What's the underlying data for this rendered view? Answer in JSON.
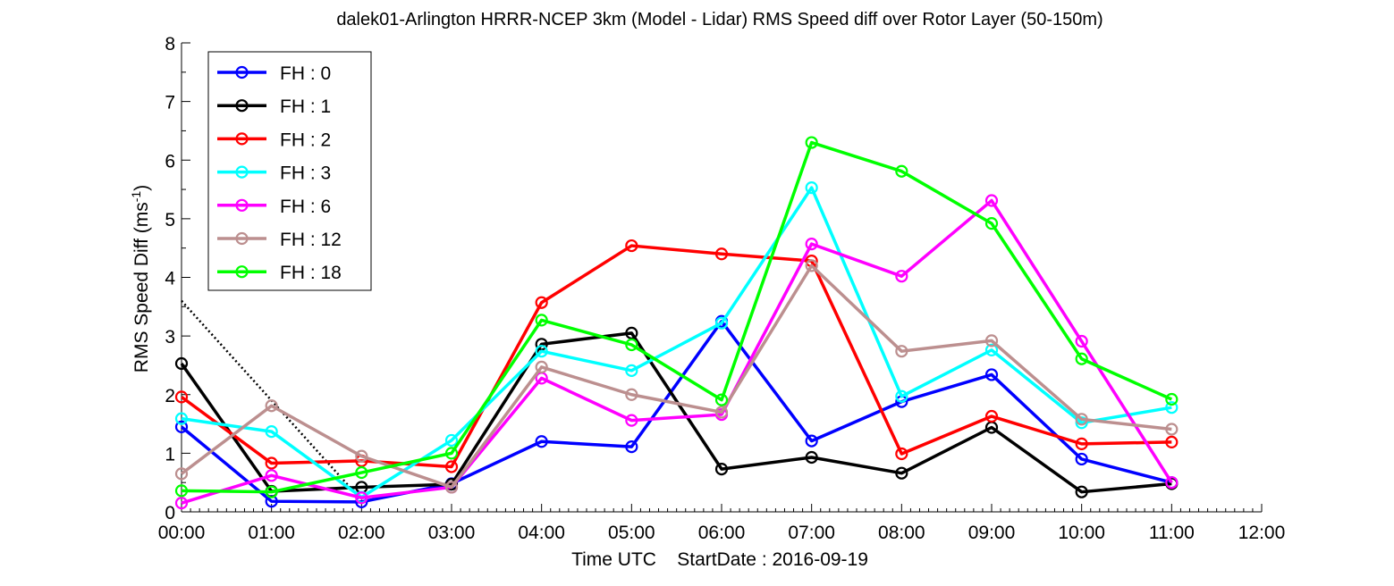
{
  "chart_data": {
    "type": "line",
    "title": "dalek01-Arlington HRRR-NCEP 3km (Model - Lidar) RMS Speed diff over Rotor Layer (50-150m)",
    "xlabel": "Time UTC    StartDate : 2016-09-19",
    "ylabel_main": "RMS Speed Diff (ms",
    "ylabel_sup": "-1",
    "ylabel_close": ")",
    "xlim": [
      0,
      12
    ],
    "ylim": [
      0,
      8
    ],
    "x_ticks": [
      {
        "v": 0,
        "label": "00:00"
      },
      {
        "v": 1,
        "label": "01:00"
      },
      {
        "v": 2,
        "label": "02:00"
      },
      {
        "v": 3,
        "label": "03:00"
      },
      {
        "v": 4,
        "label": "04:00"
      },
      {
        "v": 5,
        "label": "05:00"
      },
      {
        "v": 6,
        "label": "06:00"
      },
      {
        "v": 7,
        "label": "07:00"
      },
      {
        "v": 8,
        "label": "08:00"
      },
      {
        "v": 9,
        "label": "09:00"
      },
      {
        "v": 10,
        "label": "10:00"
      },
      {
        "v": 11,
        "label": "11:00"
      },
      {
        "v": 12,
        "label": "12:00"
      }
    ],
    "y_ticks": [
      {
        "v": 0,
        "label": "0"
      },
      {
        "v": 1,
        "label": "1"
      },
      {
        "v": 2,
        "label": "2"
      },
      {
        "v": 3,
        "label": "3"
      },
      {
        "v": 4,
        "label": "4"
      },
      {
        "v": 5,
        "label": "5"
      },
      {
        "v": 6,
        "label": "6"
      },
      {
        "v": 7,
        "label": "7"
      },
      {
        "v": 8,
        "label": "8"
      }
    ],
    "x": [
      0,
      1,
      2,
      3,
      4,
      5,
      6,
      7,
      8,
      9,
      10,
      11
    ],
    "legend_position": "top-left",
    "grid": false,
    "series": [
      {
        "name": "FH : 0",
        "color": "#0000ff",
        "values": [
          1.45,
          0.18,
          0.17,
          0.48,
          1.2,
          1.11,
          3.25,
          1.21,
          1.88,
          2.34,
          0.9,
          0.5
        ]
      },
      {
        "name": "FH : 1",
        "color": "#000000",
        "values": [
          2.53,
          0.35,
          0.42,
          0.47,
          2.86,
          3.05,
          0.73,
          0.93,
          0.66,
          1.44,
          0.34,
          0.48
        ]
      },
      {
        "name": "FH : 2",
        "color": "#ff0000",
        "values": [
          1.96,
          0.83,
          0.87,
          0.77,
          3.57,
          4.54,
          4.4,
          4.28,
          0.99,
          1.63,
          1.16,
          1.19
        ]
      },
      {
        "name": "FH : 3",
        "color": "#00ffff",
        "values": [
          1.59,
          1.37,
          0.25,
          1.22,
          2.74,
          2.41,
          3.22,
          5.53,
          1.97,
          2.76,
          1.52,
          1.78
        ]
      },
      {
        "name": "FH : 6",
        "color": "#ff00ff",
        "values": [
          0.15,
          0.62,
          0.24,
          0.42,
          2.28,
          1.56,
          1.66,
          4.57,
          4.02,
          5.31,
          2.91,
          0.5
        ]
      },
      {
        "name": "FH : 12",
        "color": "#bc8f8f",
        "values": [
          0.65,
          1.81,
          0.95,
          0.42,
          2.47,
          2.0,
          1.7,
          4.2,
          2.74,
          2.92,
          1.58,
          1.41
        ]
      },
      {
        "name": "FH : 18",
        "color": "#00ff00",
        "values": [
          0.36,
          0.34,
          0.67,
          1.0,
          3.27,
          2.85,
          1.91,
          6.3,
          5.81,
          4.92,
          2.61,
          1.92
        ]
      }
    ],
    "reference_line": {
      "style": "dotted",
      "color": "#000000",
      "x": [
        0,
        2
      ],
      "values": [
        3.6,
        0.2
      ]
    }
  }
}
